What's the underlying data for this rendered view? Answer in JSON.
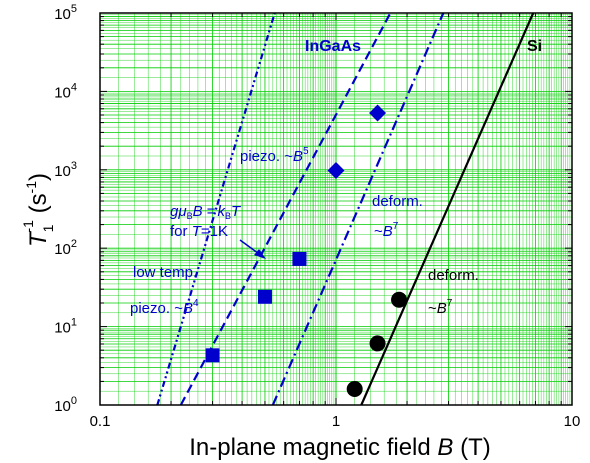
{
  "chart_data": {
    "type": "scatter",
    "xscale": "log",
    "yscale": "log",
    "xlim": [
      0.1,
      10
    ],
    "ylim": [
      1,
      100000
    ],
    "grid": true,
    "xlabel": {
      "pre": "In-plane magnetic field ",
      "var": "B",
      "post": " (T)"
    },
    "ylabel": {
      "var": "T",
      "sub": "1",
      "sup": "-1",
      "post": " (s",
      "unit_sup": "-1",
      "post2": ")"
    },
    "x_tick_labels": [
      "0.1",
      "1",
      "10"
    ],
    "y_tick_labels": [
      {
        "base": "10",
        "exp": "0"
      },
      {
        "base": "10",
        "exp": "1"
      },
      {
        "base": "10",
        "exp": "2"
      },
      {
        "base": "10",
        "exp": "3"
      },
      {
        "base": "10",
        "exp": "4"
      },
      {
        "base": "10",
        "exp": "5"
      }
    ],
    "colors": {
      "ingaas": "#0000cc",
      "si": "#000000",
      "grid": "#00cc00"
    },
    "series": [
      {
        "marker": "square",
        "color": "#0000cc",
        "x": [
          0.3,
          0.5,
          0.7
        ],
        "y": [
          4.3,
          24,
          73
        ]
      },
      {
        "marker": "diamond",
        "color": "#0000cc",
        "x": [
          1.0,
          1.5
        ],
        "y": [
          980,
          5300
        ]
      },
      {
        "marker": "circle",
        "color": "#000000",
        "x": [
          1.2,
          1.5,
          1.85
        ],
        "y": [
          1.6,
          6.1,
          22
        ]
      }
    ],
    "lines": [
      {
        "style": "dashed",
        "color": "#0000cc",
        "x1": 0.22,
        "x2": 1.7
      },
      {
        "style": "dashdot",
        "color": "#0000cc",
        "x1": 0.54,
        "x2": 2.85
      },
      {
        "style": "dashdotdot",
        "color": "#0000cc",
        "x1": 0.175,
        "x2": 0.55
      },
      {
        "style": "solid",
        "color": "#000000",
        "x1": 1.28,
        "x2": 6.85
      }
    ]
  },
  "annotations": {
    "ingaas": "InGaAs",
    "si": "Si",
    "piezo5": {
      "text": "piezo. ~",
      "var": "B",
      "exp": "5"
    },
    "deform_ingaas_1": "deform.",
    "deform_ingaas_2": {
      "text": "~",
      "var": "B",
      "exp": "7"
    },
    "deform_si_1": "deform.",
    "deform_si_2": {
      "text": "~",
      "var": "B",
      "exp": "7"
    },
    "zeeman_1": {
      "g": "g",
      "mu": "μ",
      "sub_b1": "B",
      "b": "B",
      "eq": " =",
      "k": "k",
      "sub_b2": "B",
      "t": "T"
    },
    "zeeman_2": {
      "text": "for ",
      "var": "T",
      "post": "=1K"
    },
    "low_temp": "low temp.",
    "piezo4": {
      "text": "piezo. ~",
      "var": "B",
      "exp": "4"
    }
  }
}
